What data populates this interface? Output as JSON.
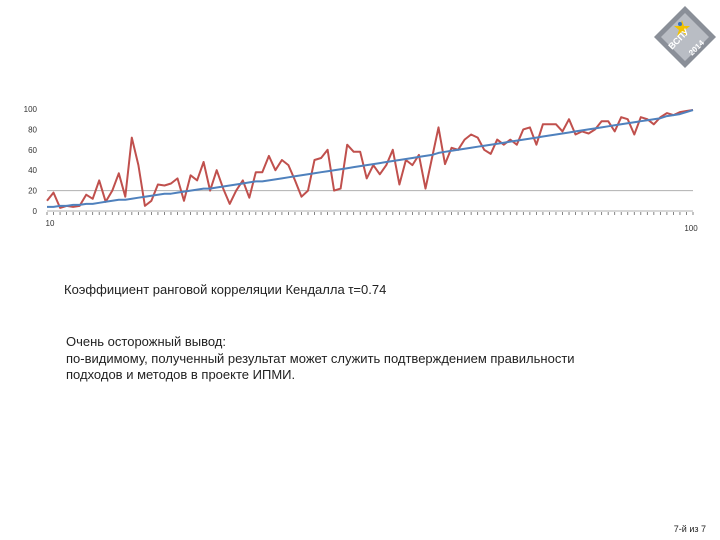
{
  "brand": {
    "logo_text": "ВСПУ",
    "logo_year": "2014",
    "logo_colors": [
      "#8a8f98",
      "#b9bdc4",
      "#f2c200",
      "#3b74b8"
    ]
  },
  "chart_data": {
    "type": "line",
    "title": "",
    "xlabel": "",
    "ylabel": "",
    "x": [
      1,
      2,
      3,
      4,
      5,
      6,
      7,
      8,
      9,
      10,
      11,
      12,
      13,
      14,
      15,
      16,
      17,
      18,
      19,
      20,
      21,
      22,
      23,
      24,
      25,
      26,
      27,
      28,
      29,
      30,
      31,
      32,
      33,
      34,
      35,
      36,
      37,
      38,
      39,
      40,
      41,
      42,
      43,
      44,
      45,
      46,
      47,
      48,
      49,
      50,
      51,
      52,
      53,
      54,
      55,
      56,
      57,
      58,
      59,
      60,
      61,
      62,
      63,
      64,
      65,
      66,
      67,
      68,
      69,
      70,
      71,
      72,
      73,
      74,
      75,
      76,
      77,
      78,
      79,
      80,
      81,
      82,
      83,
      84,
      85,
      86,
      87,
      88,
      89,
      90,
      91,
      92,
      93,
      94,
      95,
      96,
      97,
      98,
      99,
      100
    ],
    "xlim": [
      1,
      100
    ],
    "x_tick_labels": [
      "10",
      "100"
    ],
    "ylim": [
      0,
      100
    ],
    "y_ticks": [
      0,
      20,
      40,
      60,
      80,
      100
    ],
    "grid": "horizontal line at 20",
    "series": [
      {
        "color": "#c0504d",
        "values": [
          10,
          18,
          3,
          5,
          4,
          5,
          16,
          12,
          30,
          9,
          20,
          37,
          14,
          72,
          45,
          5,
          10,
          26,
          25,
          27,
          32,
          10,
          35,
          30,
          48,
          20,
          40,
          22,
          7,
          20,
          30,
          13,
          38,
          38,
          54,
          40,
          50,
          45,
          30,
          14,
          20,
          50,
          52,
          60,
          20,
          22,
          65,
          58,
          58,
          32,
          45,
          36,
          45,
          60,
          26,
          50,
          45,
          55,
          22,
          52,
          82,
          46,
          62,
          60,
          70,
          75,
          72,
          60,
          56,
          70,
          65,
          70,
          65,
          80,
          82,
          65,
          85,
          85,
          85,
          78,
          90,
          75,
          78,
          76,
          80,
          88,
          88,
          78,
          92,
          90,
          75,
          92,
          90,
          85,
          92,
          96,
          94,
          97,
          98,
          99
        ]
      },
      {
        "color": "#4f81bd",
        "values": [
          4,
          4,
          5,
          5,
          6,
          6,
          7,
          7,
          8,
          9,
          10,
          11,
          11,
          12,
          13,
          14,
          15,
          16,
          17,
          17,
          18,
          19,
          20,
          21,
          22,
          22,
          23,
          24,
          25,
          26,
          27,
          28,
          29,
          29,
          30,
          31,
          32,
          33,
          34,
          35,
          36,
          37,
          38,
          39,
          40,
          41,
          42,
          43,
          44,
          45,
          46,
          47,
          48,
          49,
          50,
          51,
          52,
          53,
          54,
          55,
          57,
          58,
          59,
          60,
          61,
          62,
          63,
          64,
          65,
          66,
          67,
          68,
          69,
          70,
          71,
          72,
          73,
          74,
          75,
          76,
          77,
          78,
          79,
          80,
          81,
          82,
          83,
          84,
          85,
          86,
          87,
          88,
          89,
          90,
          91,
          93,
          94,
          95,
          97,
          99
        ]
      }
    ]
  },
  "text": {
    "kendall_statement": "Коэффициент ранговой корреляции Кендалла τ=0.74",
    "conclusion_lines": [
      "Очень осторожный вывод:",
      "по-видимому, полученный результат может служить подтверждением правильности",
      "подходов и методов в проекте ИПМИ."
    ]
  },
  "footer": {
    "page_label": "7-й из 7"
  }
}
